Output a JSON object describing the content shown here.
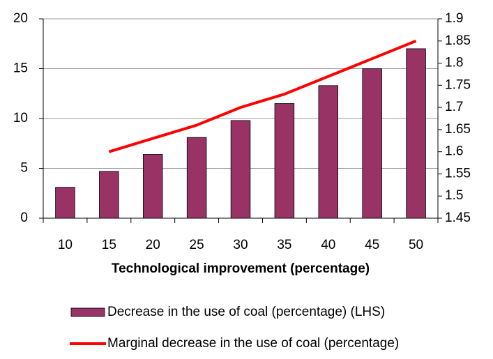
{
  "chart_data": {
    "type": "bar_line",
    "x_label": "Technological improvement (percentage)",
    "categories": [
      "10",
      "15",
      "20",
      "25",
      "30",
      "35",
      "40",
      "45",
      "50"
    ],
    "series": [
      {
        "name": "Decrease in the use of coal (percentage) (LHS)",
        "type": "bar",
        "color": "#993366",
        "values": [
          3.1,
          4.7,
          6.4,
          8.1,
          9.8,
          11.5,
          13.3,
          15.0,
          17.0
        ]
      },
      {
        "name": "Marginal decrease in the use of coal (percentage)",
        "type": "line",
        "axis": "y2",
        "color": "#ff0000",
        "values": [
          null,
          1.6,
          1.63,
          1.66,
          1.7,
          1.73,
          1.77,
          1.81,
          1.85
        ]
      }
    ],
    "ylim": [
      0,
      20
    ],
    "yticks": [
      0,
      5,
      10,
      15,
      20
    ],
    "y2lim": [
      1.45,
      1.9
    ],
    "y2ticks": [
      1.45,
      1.5,
      1.55,
      1.6,
      1.65,
      1.7,
      1.75,
      1.8,
      1.85,
      1.9
    ],
    "grid": true,
    "legend": "bottom"
  }
}
